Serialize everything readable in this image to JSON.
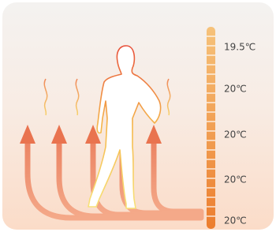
{
  "scale": {
    "labels": [
      "19.5℃",
      "20℃",
      "20℃",
      "20℃",
      "20℃"
    ]
  }
}
